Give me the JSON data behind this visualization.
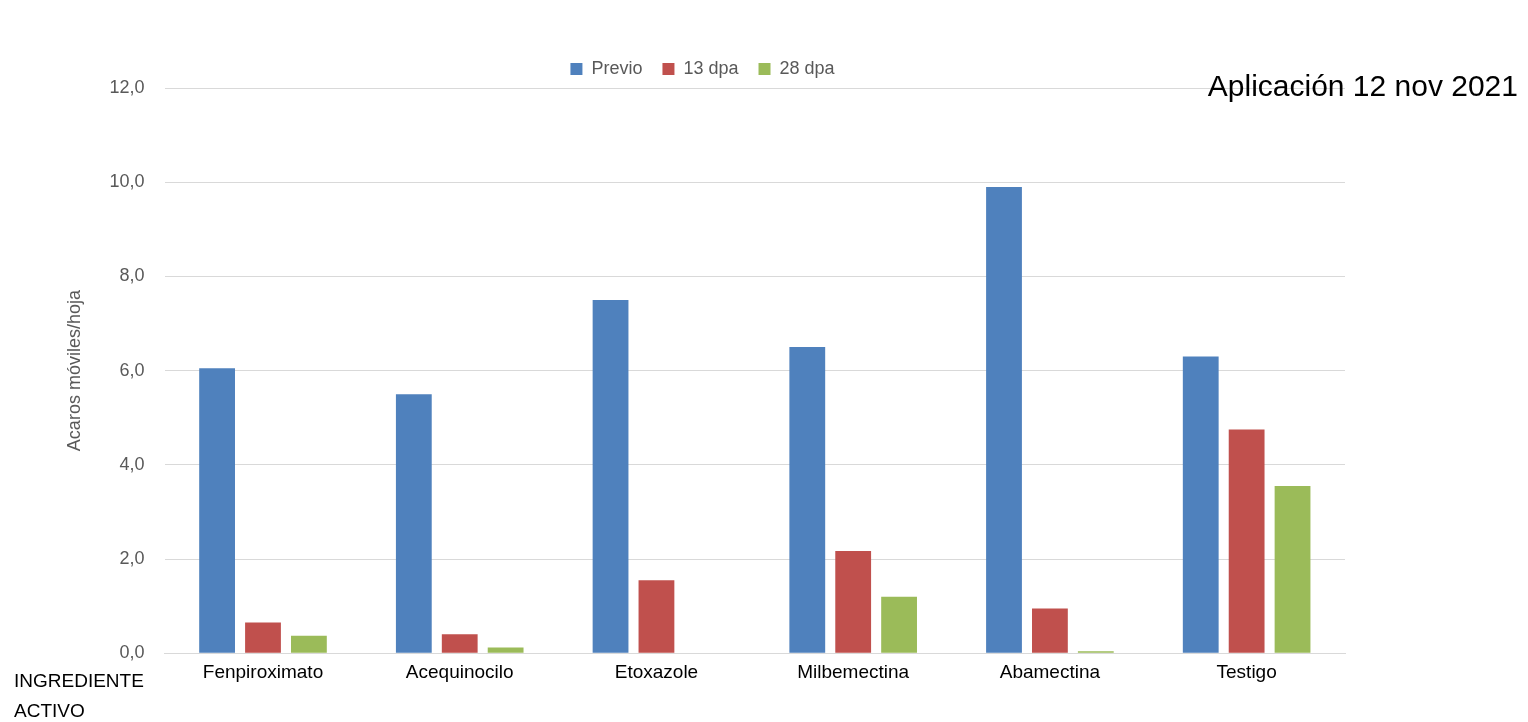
{
  "chart_data": {
    "type": "bar",
    "ylabel": "Acaros móviles/hoja",
    "categories": [
      "Fenpiroximato",
      "Acequinocilo",
      "Etoxazole",
      "Milbemectina",
      "Abamectina",
      "Testigo"
    ],
    "series": [
      {
        "name": "Previo",
        "color": "#4f81bd",
        "values": [
          6.05,
          5.5,
          7.5,
          6.5,
          9.9,
          6.3
        ]
      },
      {
        "name": "13 dpa",
        "color": "#c0504d",
        "values": [
          0.65,
          0.4,
          1.55,
          2.17,
          0.95,
          4.75
        ]
      },
      {
        "name": "28 dpa",
        "color": "#9bbb59",
        "values": [
          0.37,
          0.12,
          0,
          1.2,
          0.04,
          3.55
        ]
      }
    ],
    "ylim": [
      0,
      12
    ],
    "yticks": [
      {
        "value": 0,
        "label": "0,0"
      },
      {
        "value": 2,
        "label": "2,0"
      },
      {
        "value": 4,
        "label": "4,0"
      },
      {
        "value": 6,
        "label": "6,0"
      },
      {
        "value": 8,
        "label": "8,0"
      },
      {
        "value": 10,
        "label": "10,0"
      },
      {
        "value": 12,
        "label": "12,0"
      }
    ],
    "grid": "y",
    "legend": "top",
    "annotations": [
      "Aplicación 12 nov 2021",
      "INGREDIENTE ACTIVO"
    ]
  }
}
